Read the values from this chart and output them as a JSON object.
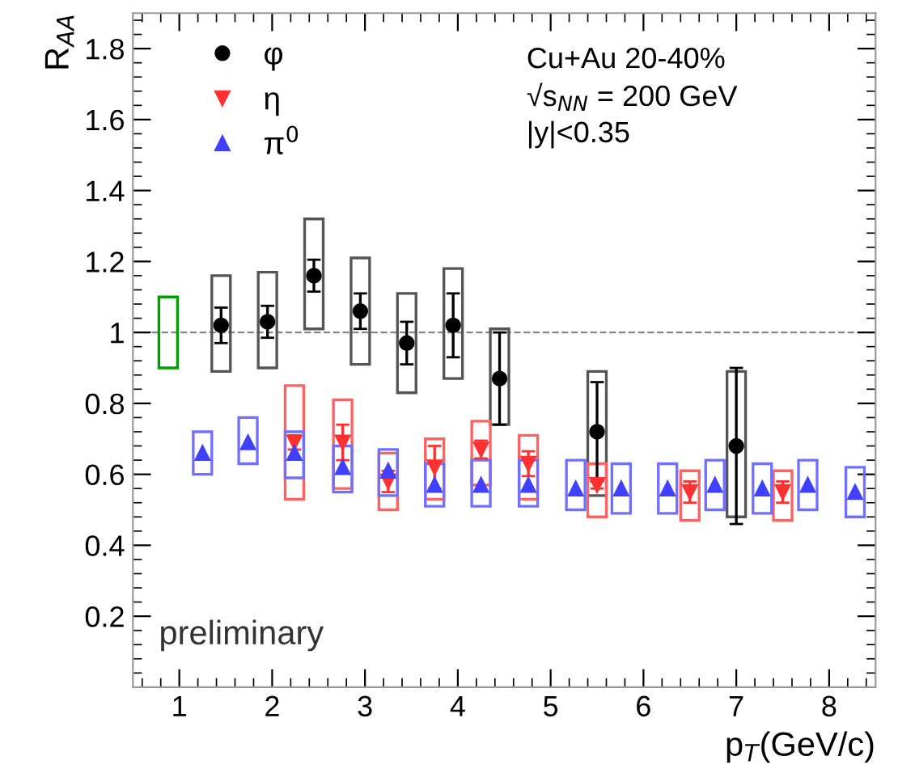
{
  "chart_data": {
    "type": "scatter",
    "xlabel": "p$_{T}$(GeV/c)",
    "ylabel": "R$_{AA}$",
    "xlim": [
      0.5,
      8.5
    ],
    "ylim": [
      0,
      1.9
    ],
    "xticks": [
      1,
      2,
      3,
      4,
      5,
      6,
      7,
      8
    ],
    "yticks": [
      0.2,
      0.4,
      0.6,
      0.8,
      1,
      1.2,
      1.4,
      1.6,
      1.8
    ],
    "grid": false,
    "legend": "top left",
    "ref_lines": [
      {
        "axis": "y",
        "value": 1,
        "line_style": "dashed",
        "color": "#888888"
      }
    ],
    "annotations": [
      "Cu+Au 20-40%",
      "√s$_{NN}$ = 200 GeV",
      "|y|<0.35",
      "preliminary"
    ],
    "series": [
      {
        "type": "bar",
        "color": "#555555",
        "x": [
          1.45,
          1.95,
          2.45,
          2.95,
          3.45,
          3.95,
          4.45,
          5.5,
          7.0
        ],
        "base": [
          0.89,
          0.9,
          1.01,
          0.91,
          0.83,
          0.87,
          0.74,
          0.54,
          0.48
        ],
        "values": [
          0.27,
          0.27,
          0.31,
          0.3,
          0.28,
          0.31,
          0.27,
          0.35,
          0.41
        ]
      },
      {
        "type": "bar",
        "color": "#ff6060",
        "x": [
          2.24,
          2.76,
          3.25,
          3.75,
          4.25,
          4.76,
          5.5,
          6.5,
          7.5
        ],
        "base": [
          0.53,
          0.56,
          0.5,
          0.53,
          0.57,
          0.53,
          0.48,
          0.47,
          0.47
        ],
        "values": [
          0.32,
          0.25,
          0.16,
          0.17,
          0.18,
          0.18,
          0.15,
          0.14,
          0.14
        ]
      },
      {
        "type": "bar",
        "color": "#7070ff",
        "x": [
          1.25,
          1.74,
          2.24,
          2.76,
          3.25,
          3.75,
          4.25,
          4.76,
          5.27,
          5.76,
          6.26,
          6.77,
          7.28,
          7.77,
          8.28
        ],
        "base": [
          0.6,
          0.63,
          0.59,
          0.55,
          0.54,
          0.51,
          0.51,
          0.51,
          0.5,
          0.49,
          0.49,
          0.5,
          0.49,
          0.5,
          0.48
        ],
        "values": [
          0.12,
          0.13,
          0.13,
          0.13,
          0.13,
          0.12,
          0.13,
          0.13,
          0.14,
          0.14,
          0.14,
          0.14,
          0.14,
          0.14,
          0.14
        ]
      },
      {
        "type": "bar",
        "color": "#00a000",
        "x": [
          0.88
        ],
        "base": [
          0.9
        ],
        "values": [
          0.2
        ]
      },
      {
        "name": "φ",
        "color": "#000000",
        "marker": "circle",
        "x": [
          1.45,
          1.95,
          2.45,
          2.95,
          3.45,
          3.95,
          4.45,
          5.5,
          7.0
        ],
        "values": [
          1.02,
          1.03,
          1.16,
          1.06,
          0.97,
          1.02,
          0.87,
          0.72,
          0.68
        ],
        "errors": [
          0.05,
          0.045,
          0.045,
          0.05,
          0.06,
          0.09,
          0.13,
          0.14,
          0.22
        ]
      },
      {
        "name": "η",
        "color": "#ff3030",
        "marker": "triangle_down",
        "x": [
          2.24,
          2.76,
          3.25,
          3.75,
          4.25,
          4.76,
          5.5,
          6.5,
          7.5
        ],
        "values": [
          0.69,
          0.69,
          0.58,
          0.62,
          0.67,
          0.63,
          0.57,
          0.55,
          0.55
        ],
        "errors": [
          0.02,
          0.05,
          0.03,
          0.06,
          0.025,
          0.035,
          0.01,
          0.03,
          0.03
        ]
      },
      {
        "name": "π$^{0}$",
        "color": "#4040ff",
        "marker": "triangle",
        "x": [
          1.25,
          1.74,
          2.24,
          2.76,
          3.25,
          3.75,
          4.25,
          4.76,
          5.27,
          5.76,
          6.26,
          6.77,
          7.28,
          7.77,
          8.28
        ],
        "values": [
          0.66,
          0.69,
          0.66,
          0.62,
          0.61,
          0.57,
          0.57,
          0.57,
          0.56,
          0.56,
          0.56,
          0.57,
          0.56,
          0.57,
          0.55
        ]
      }
    ]
  }
}
